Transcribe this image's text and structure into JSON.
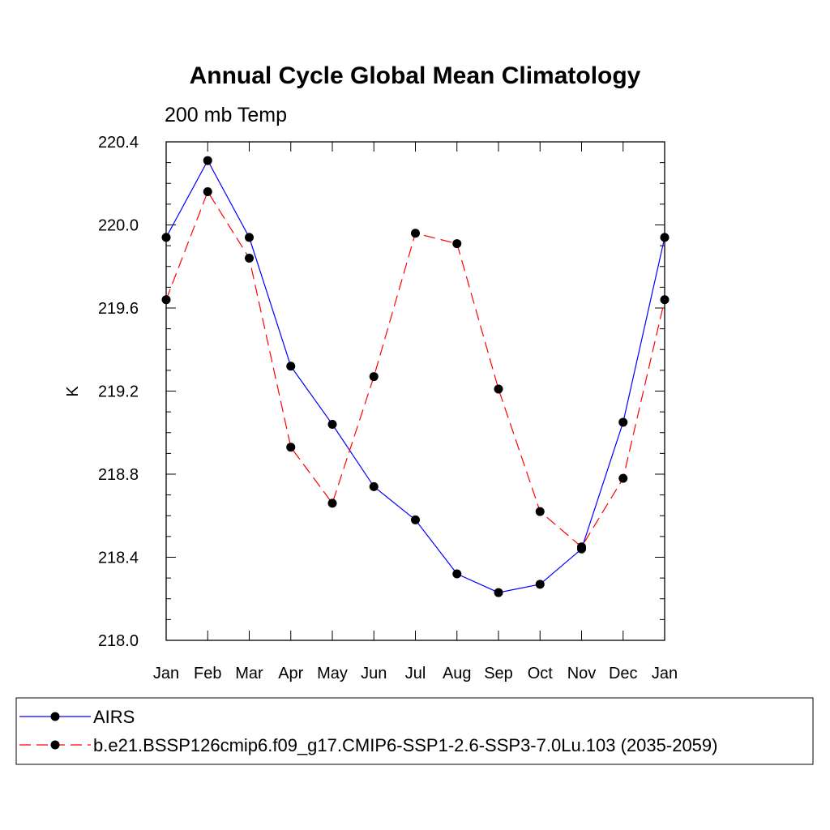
{
  "chart_data": {
    "type": "line",
    "title": "Annual Cycle Global Mean Climatology",
    "subtitle": "200 mb Temp",
    "xlabel": "",
    "ylabel": "K",
    "categories": [
      "Jan",
      "Feb",
      "Mar",
      "Apr",
      "May",
      "Jun",
      "Jul",
      "Aug",
      "Sep",
      "Oct",
      "Nov",
      "Dec",
      "Jan"
    ],
    "ylim": [
      218.0,
      220.4
    ],
    "yticks": [
      "218.0",
      "218.4",
      "218.8",
      "219.2",
      "219.6",
      "220.0",
      "220.4"
    ],
    "grid": false,
    "legend": "bottom",
    "series": [
      {
        "name": "AIRS",
        "color": "#0000ff",
        "dash": "solid",
        "values": [
          219.94,
          220.31,
          219.94,
          219.32,
          219.04,
          218.74,
          218.58,
          218.32,
          218.23,
          218.27,
          218.44,
          219.05,
          219.94
        ]
      },
      {
        "name": "b.e21.BSSP126cmip6.f09_g17.CMIP6-SSP1-2.6-SSP3-7.0Lu.103 (2035-2059)",
        "color": "#ff0000",
        "dash": "dashed",
        "values": [
          219.64,
          220.16,
          219.84,
          218.93,
          218.66,
          219.27,
          219.96,
          219.91,
          219.21,
          218.62,
          218.45,
          218.78,
          219.64
        ]
      }
    ]
  }
}
